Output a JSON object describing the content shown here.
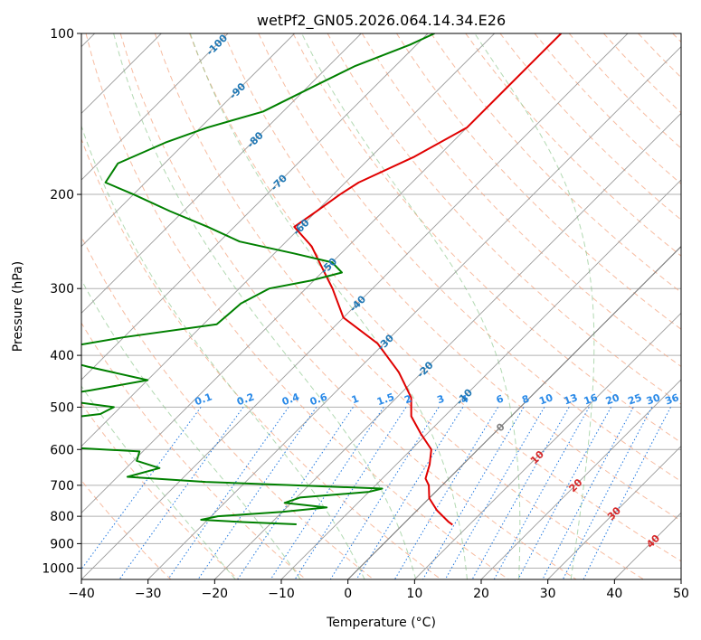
{
  "chart_data": {
    "type": "line",
    "title": "wetPf2_GN05.2026.064.14.34.E26",
    "xlabel": "Temperature (°C)",
    "ylabel": "Pressure (hPa)",
    "xlim": [
      -40,
      50
    ],
    "ylim": [
      1050,
      100
    ],
    "y_scale": "log",
    "grid": true,
    "x_ticks": [
      -40,
      -30,
      -20,
      -10,
      0,
      10,
      20,
      30,
      40,
      50
    ],
    "y_ticks": [
      100,
      200,
      300,
      400,
      500,
      600,
      700,
      800,
      900,
      1000
    ],
    "skew_isotherms_C": [
      -180,
      -170,
      -160,
      -150,
      -140,
      -130,
      -120,
      -110,
      -100,
      -90,
      -80,
      -70,
      -60,
      -50,
      -40,
      -30,
      -20,
      -10,
      0,
      10,
      20,
      30,
      40,
      50
    ],
    "dry_adiabats_theta_C": [
      -30,
      -20,
      -10,
      0,
      10,
      20,
      30,
      40,
      50,
      60,
      70,
      80,
      90,
      100,
      110,
      120,
      130,
      140,
      150,
      160,
      170,
      180,
      190,
      200,
      220,
      240,
      260
    ],
    "moist_adiabats_C": [
      -20,
      -10,
      0,
      8,
      16,
      24,
      32
    ],
    "mixing_ratio_labels": [
      "0.1",
      "0.2",
      "0.4",
      "0.6",
      "1",
      "1.5",
      "2",
      "3",
      "4",
      "6",
      "8",
      "10",
      "13",
      "16",
      "20",
      "25",
      "30",
      "36"
    ],
    "mixing_ratio_values": [
      0.1,
      0.2,
      0.4,
      0.6,
      1,
      1.5,
      2,
      3,
      4,
      6,
      8,
      10,
      13,
      16,
      20,
      25,
      30,
      36
    ],
    "isotherm_labels": [
      {
        "text": "-100",
        "value": -100,
        "p": 105
      },
      {
        "text": "-90",
        "value": -90,
        "p": 128
      },
      {
        "text": "-80",
        "value": -80,
        "p": 158
      },
      {
        "text": "-70",
        "value": -70,
        "p": 190
      },
      {
        "text": "-60",
        "value": -60,
        "p": 230
      },
      {
        "text": "-50",
        "value": -50,
        "p": 272
      },
      {
        "text": "-40",
        "value": -40,
        "p": 320
      },
      {
        "text": "-30",
        "value": -30,
        "p": 378
      },
      {
        "text": "-20",
        "value": -20,
        "p": 425
      },
      {
        "text": "-10",
        "value": -10,
        "p": 478
      },
      {
        "text": "0",
        "value": 0,
        "p": 545
      },
      {
        "text": "10",
        "value": 10,
        "p": 620
      },
      {
        "text": "20",
        "value": 20,
        "p": 700
      },
      {
        "text": "30",
        "value": 30,
        "p": 790
      },
      {
        "text": "40",
        "value": 40,
        "p": 890
      }
    ],
    "series": [
      {
        "name": "",
        "color": "#e00000",
        "points": [
          [
            -50.0,
            100
          ],
          [
            -50.0,
            110
          ],
          [
            -50.0,
            130
          ],
          [
            -50.0,
            150
          ],
          [
            -53.5,
            170
          ],
          [
            -58.0,
            190
          ],
          [
            -59.0,
            200
          ],
          [
            -60.0,
            215
          ],
          [
            -61.0,
            230
          ],
          [
            -55.5,
            250
          ],
          [
            -51.5,
            270
          ],
          [
            -46.0,
            300
          ],
          [
            -40.0,
            340
          ],
          [
            -31.0,
            380
          ],
          [
            -23.5,
            430
          ],
          [
            -17.8,
            480
          ],
          [
            -15.0,
            520
          ],
          [
            -11.0,
            560
          ],
          [
            -7.0,
            600
          ],
          [
            -5.0,
            640
          ],
          [
            -3.5,
            680
          ],
          [
            -2.0,
            700
          ],
          [
            0.0,
            740
          ],
          [
            3.0,
            780
          ],
          [
            6.5,
            820
          ],
          [
            7.5,
            830
          ]
        ]
      },
      {
        "name": "",
        "color": "#008000",
        "points": [
          [
            -69.0,
            100
          ],
          [
            -71.0,
            105
          ],
          [
            -76.0,
            115
          ],
          [
            -79.0,
            125
          ],
          [
            -83.0,
            140
          ],
          [
            -89.0,
            150
          ],
          [
            -93.0,
            160
          ],
          [
            -97.0,
            175
          ],
          [
            -96.0,
            190
          ],
          [
            -90.0,
            200
          ],
          [
            -82.0,
            215
          ],
          [
            -74.0,
            230
          ],
          [
            -67.0,
            245
          ],
          [
            -57.0,
            258
          ],
          [
            -50.0,
            268
          ],
          [
            -47.0,
            280
          ],
          [
            -50.5,
            290
          ],
          [
            -55.5,
            300
          ],
          [
            -57.5,
            320
          ],
          [
            -58.0,
            350
          ],
          [
            -70.0,
            370
          ],
          [
            -81.0,
            395
          ],
          [
            -71.0,
            420
          ],
          [
            -60.0,
            445
          ],
          [
            -67.0,
            465
          ],
          [
            -73.0,
            480
          ],
          [
            -61.0,
            500
          ],
          [
            -62.0,
            515
          ],
          [
            -67.0,
            525
          ],
          [
            -66.0,
            540
          ],
          [
            -63.0,
            558
          ],
          [
            -71.0,
            580
          ],
          [
            -64.0,
            593
          ],
          [
            -50.5,
            605
          ],
          [
            -49.5,
            630
          ],
          [
            -45.0,
            650
          ],
          [
            -48.5,
            675
          ],
          [
            -36.0,
            690
          ],
          [
            -22.0,
            700
          ],
          [
            -8.5,
            710
          ],
          [
            -10.0,
            720
          ],
          [
            -19.5,
            738
          ],
          [
            -21.0,
            755
          ],
          [
            -14.0,
            770
          ],
          [
            -20.0,
            785
          ],
          [
            -29.0,
            800
          ],
          [
            -31.0,
            812
          ],
          [
            -24.5,
            820
          ],
          [
            -16.0,
            828
          ]
        ]
      }
    ]
  }
}
